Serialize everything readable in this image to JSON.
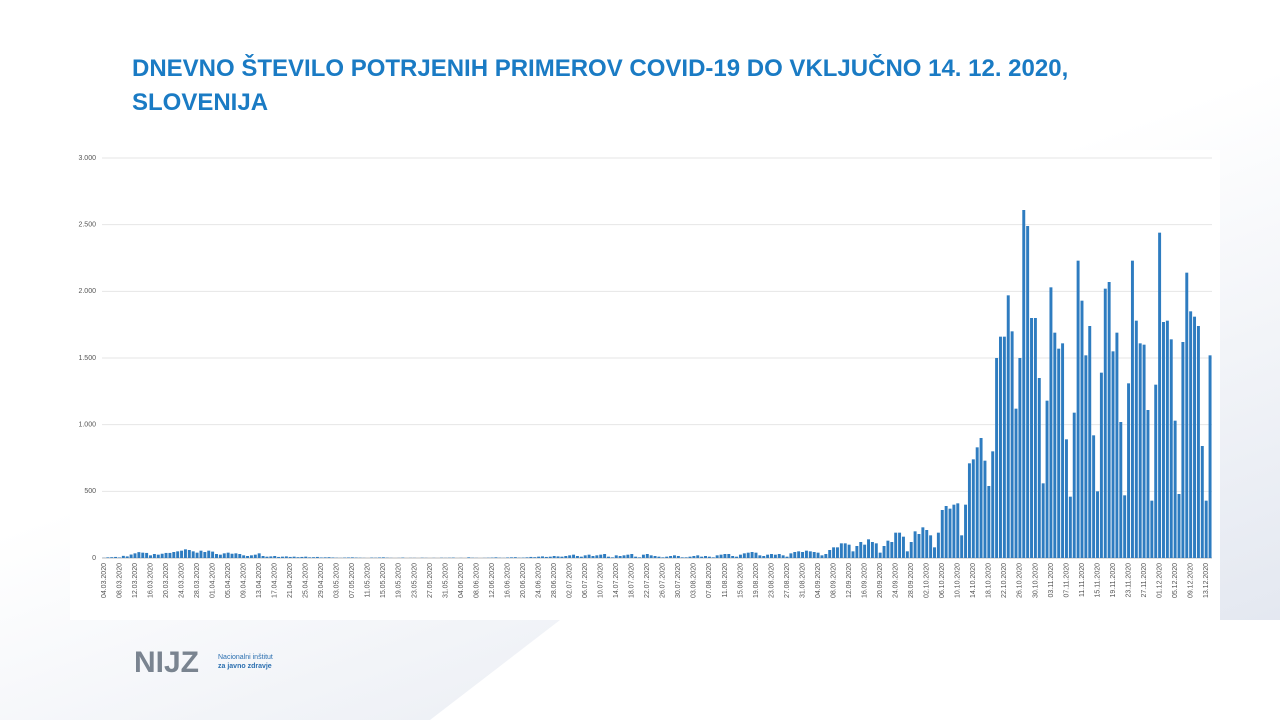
{
  "chart_data": {
    "type": "bar",
    "title": "DNEVNO ŠTEVILO POTRJENIH PRIMEROV COVID-19 DO VKLJUČNO 14. 12. 2020, SLOVENIJA",
    "categories": [
      "04.03.2020",
      null,
      null,
      null,
      "08.03.2020",
      null,
      null,
      null,
      "12.03.2020",
      null,
      null,
      null,
      "16.03.2020",
      null,
      null,
      null,
      "20.03.2020",
      null,
      null,
      null,
      "24.03.2020",
      null,
      null,
      null,
      "28.03.2020",
      null,
      null,
      null,
      "01.04.2020",
      null,
      null,
      null,
      "05.04.2020",
      null,
      null,
      null,
      "09.04.2020",
      null,
      null,
      null,
      "13.04.2020",
      null,
      null,
      null,
      "17.04.2020",
      null,
      null,
      null,
      "21.04.2020",
      null,
      null,
      null,
      "25.04.2020",
      null,
      null,
      null,
      "29.04.2020",
      null,
      null,
      null,
      "03.05.2020",
      null,
      null,
      null,
      "07.05.2020",
      null,
      null,
      null,
      "11.05.2020",
      null,
      null,
      null,
      "15.05.2020",
      null,
      null,
      null,
      "19.05.2020",
      null,
      null,
      null,
      "23.05.2020",
      null,
      null,
      null,
      "27.05.2020",
      null,
      null,
      null,
      "31.05.2020",
      null,
      null,
      null,
      "04.06.2020",
      null,
      null,
      null,
      "08.06.2020",
      null,
      null,
      null,
      "12.06.2020",
      null,
      null,
      null,
      "16.06.2020",
      null,
      null,
      null,
      "20.06.2020",
      null,
      null,
      null,
      "24.06.2020",
      null,
      null,
      null,
      "28.06.2020",
      null,
      null,
      null,
      "02.07.2020",
      null,
      null,
      null,
      "06.07.2020",
      null,
      null,
      null,
      "10.07.2020",
      null,
      null,
      null,
      "14.07.2020",
      null,
      null,
      null,
      "18.07.2020",
      null,
      null,
      null,
      "22.07.2020",
      null,
      null,
      null,
      "26.07.2020",
      null,
      null,
      null,
      "30.07.2020",
      null,
      null,
      null,
      "03.08.2020",
      null,
      null,
      null,
      "07.08.2020",
      null,
      null,
      null,
      "11.08.2020",
      null,
      null,
      null,
      "15.08.2020",
      null,
      null,
      null,
      "19.08.2020",
      null,
      null,
      null,
      "23.08.2020",
      null,
      null,
      null,
      "27.08.2020",
      null,
      null,
      null,
      "31.08.2020",
      null,
      null,
      null,
      "04.09.2020",
      null,
      null,
      null,
      "08.09.2020",
      null,
      null,
      null,
      "12.09.2020",
      null,
      null,
      null,
      "16.09.2020",
      null,
      null,
      null,
      "20.09.2020",
      null,
      null,
      null,
      "24.09.2020",
      null,
      null,
      null,
      "28.09.2020",
      null,
      null,
      null,
      "02.10.2020",
      null,
      null,
      null,
      "06.10.2020",
      null,
      null,
      null,
      "10.10.2020",
      null,
      null,
      null,
      "14.10.2020",
      null,
      null,
      null,
      "18.10.2020",
      null,
      null,
      null,
      "22.10.2020",
      null,
      null,
      null,
      "26.10.2020",
      null,
      null,
      null,
      "30.10.2020",
      null,
      null,
      null,
      "03.11.2020",
      null,
      null,
      null,
      "07.11.2020",
      null,
      null,
      null,
      "11.11.2020",
      null,
      null,
      null,
      "15.11.2020",
      null,
      null,
      null,
      "19.11.2020",
      null,
      null,
      null,
      "23.11.2020",
      null,
      null,
      null,
      "27.11.2020",
      null,
      null,
      null,
      "01.12.2020",
      null,
      null,
      null,
      "05.12.2020",
      null,
      null,
      null,
      "09.12.2020",
      null,
      null,
      null,
      "13.12.2020",
      null
    ],
    "values": [
      1,
      5,
      6,
      8,
      4,
      16,
      12,
      26,
      35,
      44,
      40,
      38,
      20,
      30,
      25,
      32,
      38,
      38,
      45,
      50,
      55,
      65,
      60,
      50,
      40,
      55,
      45,
      55,
      48,
      30,
      25,
      35,
      40,
      32,
      35,
      30,
      20,
      15,
      20,
      25,
      35,
      15,
      10,
      12,
      15,
      8,
      10,
      12,
      8,
      10,
      6,
      8,
      10,
      5,
      6,
      8,
      4,
      5,
      6,
      4,
      2,
      1,
      3,
      4,
      5,
      3,
      2,
      1,
      0,
      3,
      2,
      4,
      5,
      2,
      1,
      0,
      1,
      3,
      0,
      1,
      1,
      0,
      2,
      1,
      0,
      1,
      0,
      2,
      1,
      2,
      3,
      0,
      1,
      0,
      5,
      2,
      1,
      0,
      1,
      2,
      3,
      5,
      2,
      1,
      4,
      5,
      6,
      2,
      3,
      5,
      8,
      6,
      10,
      12,
      8,
      10,
      15,
      12,
      10,
      15,
      20,
      25,
      15,
      10,
      20,
      25,
      15,
      20,
      25,
      30,
      10,
      5,
      20,
      15,
      20,
      25,
      30,
      10,
      5,
      25,
      30,
      20,
      15,
      10,
      5,
      10,
      15,
      20,
      15,
      5,
      5,
      10,
      15,
      20,
      10,
      15,
      10,
      5,
      20,
      25,
      30,
      30,
      15,
      10,
      25,
      35,
      40,
      45,
      40,
      20,
      15,
      25,
      30,
      25,
      30,
      20,
      10,
      35,
      45,
      50,
      45,
      55,
      50,
      45,
      40,
      20,
      30,
      60,
      80,
      80,
      110,
      110,
      100,
      50,
      90,
      120,
      100,
      140,
      120,
      110,
      40,
      90,
      130,
      120,
      190,
      190,
      160,
      50,
      120,
      200,
      180,
      230,
      210,
      170,
      80,
      190,
      360,
      390,
      370,
      400,
      410,
      170,
      400,
      710,
      740,
      830,
      900,
      730,
      540,
      800,
      1500,
      1660,
      1660,
      1970,
      1700,
      1120,
      1500,
      2610,
      2490,
      1800,
      1800,
      1350,
      560,
      1180,
      2030,
      1690,
      1570,
      1610,
      890,
      460,
      1090,
      2230,
      1930,
      1520,
      1740,
      920,
      500,
      1390,
      2020,
      2070,
      1550,
      1690,
      1020,
      470,
      1310,
      2230,
      1780,
      1610,
      1600,
      1110,
      430,
      1300,
      2440,
      1770,
      1780,
      1640,
      1030,
      480,
      1620,
      2140,
      1850,
      1810,
      1740,
      840,
      430,
      1520
    ],
    "color": "#2e7cc0",
    "ylim": [
      0,
      3000
    ],
    "yticks": [
      0,
      500,
      {
        "value": 1000,
        "label": "1.000"
      },
      {
        "value": 1500,
        "label": "1.500"
      },
      {
        "value": 2000,
        "label": "2.000"
      },
      {
        "value": 2500,
        "label": "2.500"
      },
      {
        "value": 3000,
        "label": "3.000"
      }
    ],
    "grid": true
  },
  "logo": {
    "text": "NIJZ",
    "line1": "Nacionalni inštitut",
    "line2": "za javno zdravje"
  }
}
